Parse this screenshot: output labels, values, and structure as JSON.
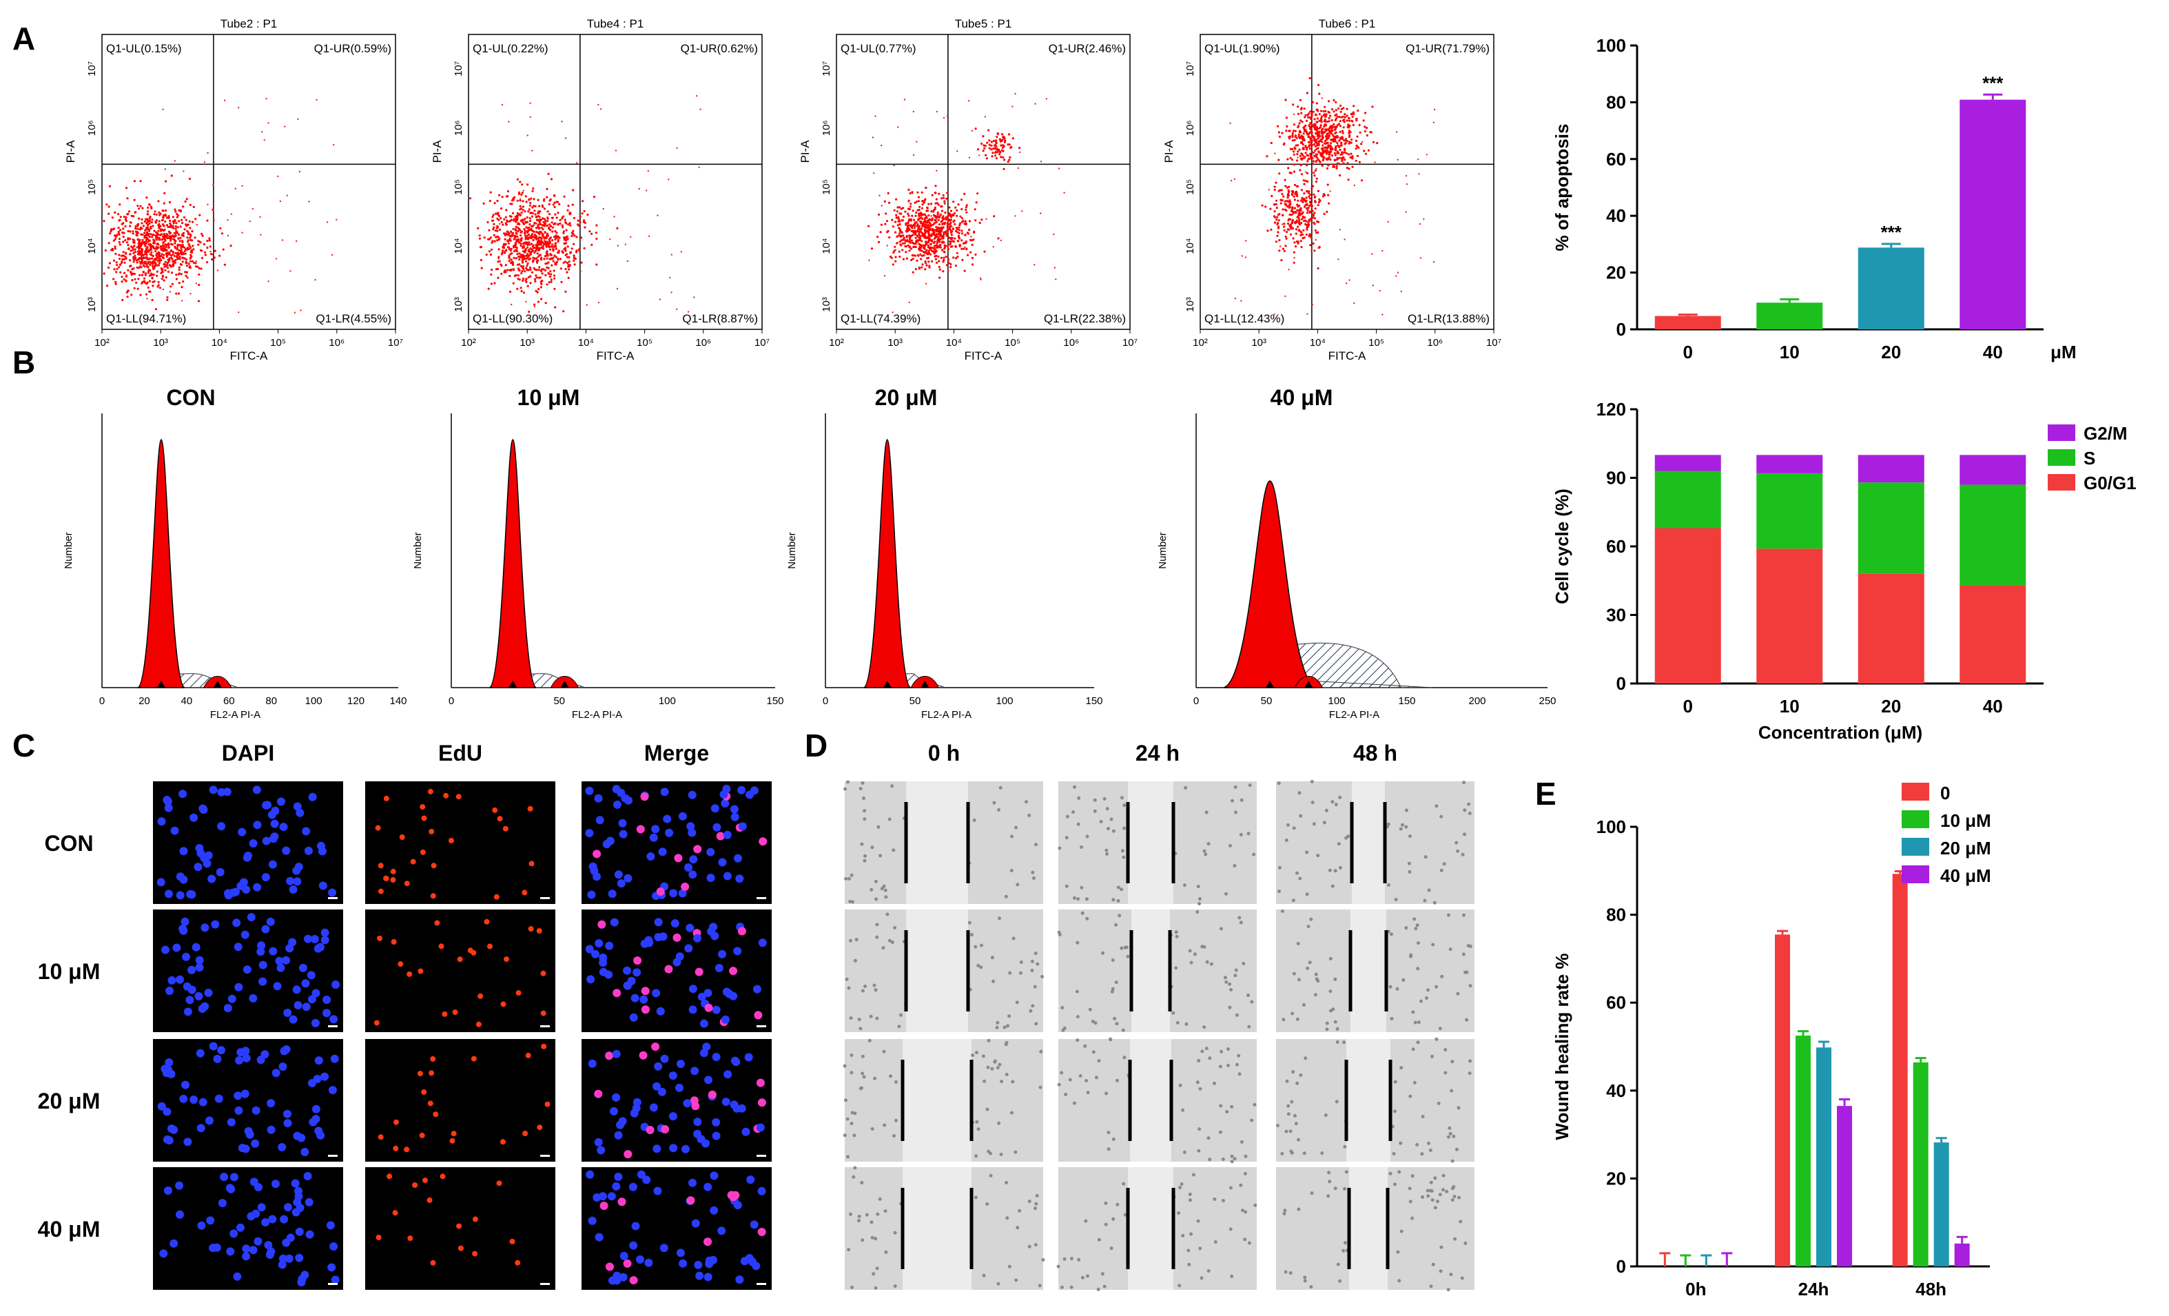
{
  "panels": {
    "a": "A",
    "b": "B",
    "c": "C",
    "d": "D",
    "e": "E"
  },
  "flow_cytometry": {
    "x_axis_label": "FITC-A",
    "y_axis_label": "PI-A",
    "x_ticks": [
      "10²",
      "10³",
      "10⁴",
      "10⁵",
      "10⁶",
      "10⁷"
    ],
    "y_ticks": [
      "10³",
      "10⁴",
      "10⁵",
      "10⁶",
      "10⁷"
    ],
    "plots": [
      {
        "title": "Tube2 : P1",
        "ul": "Q1-UL(0.15%)",
        "ur": "Q1-UR(0.59%)",
        "ll": "Q1-LL(94.71%)",
        "lr": "Q1-LR(4.55%)"
      },
      {
        "title": "Tube4 : P1",
        "ul": "Q1-UL(0.22%)",
        "ur": "Q1-UR(0.62%)",
        "ll": "Q1-LL(90.30%)",
        "lr": "Q1-LR(8.87%)"
      },
      {
        "title": "Tube5 : P1",
        "ul": "Q1-UL(0.77%)",
        "ur": "Q1-UR(2.46%)",
        "ll": "Q1-LL(74.39%)",
        "lr": "Q1-LR(22.38%)"
      },
      {
        "title": "Tube6 : P1",
        "ul": "Q1-UL(1.90%)",
        "ur": "Q1-UR(71.79%)",
        "ll": "Q1-LL(12.43%)",
        "lr": "Q1-LR(13.88%)"
      }
    ]
  },
  "histograms": {
    "y_axis_label": "Number",
    "x_axis_label": "FL2-A PI-A",
    "titles": [
      "CON",
      "10 μM",
      "20 μM",
      "40 μM"
    ],
    "x_ticks": [
      [
        "0",
        "20",
        "40",
        "60",
        "80",
        "100",
        "120",
        "140"
      ],
      [
        "0",
        "50",
        "100",
        "150"
      ],
      [
        "0",
        "50",
        "100",
        "150"
      ],
      [
        "0",
        "50",
        "100",
        "150",
        "200",
        "250"
      ]
    ]
  },
  "imaging": {
    "edu_columns": [
      "DAPI",
      "EdU",
      "Merge"
    ],
    "edu_rows": [
      "CON",
      "10 μM",
      "20 μM",
      "40 μM"
    ],
    "wound_columns": [
      "0 h",
      "24 h",
      "48 h"
    ]
  },
  "colors": {
    "red": "#F23B3B",
    "green": "#1DBF1D",
    "teal": "#1F97B0",
    "purple": "#A81FE0",
    "s_green": "#1DBF1D",
    "g2m_purple": "#A81FE0"
  },
  "chart_data": [
    {
      "type": "bar",
      "id": "apoptosis",
      "categories": [
        "0",
        "10",
        "20",
        "40"
      ],
      "unit_label": "μM",
      "values": [
        4.7,
        9.4,
        28.8,
        80.9
      ],
      "errors": [
        0.5,
        1.2,
        1.3,
        1.8
      ],
      "significance": [
        "",
        "",
        "***",
        "***"
      ],
      "ylabel": "% of apoptosis",
      "ylim": [
        0,
        100
      ],
      "yticks": [
        0,
        20,
        40,
        60,
        80,
        100
      ]
    },
    {
      "type": "bar",
      "id": "cell_cycle",
      "stacked": true,
      "categories": [
        "0",
        "10",
        "20",
        "40"
      ],
      "xlabel": "Concentration (μM)",
      "ylabel": "Cell cycle (%)",
      "ylim": [
        0,
        120
      ],
      "yticks": [
        0,
        30,
        60,
        90,
        120
      ],
      "legend_position": "top-right",
      "series": [
        {
          "name": "G0/G1",
          "values": [
            68,
            59,
            48,
            43
          ]
        },
        {
          "name": "S",
          "values": [
            25,
            33,
            40,
            44
          ]
        },
        {
          "name": "G2/M",
          "values": [
            7,
            8,
            12,
            13
          ]
        }
      ]
    },
    {
      "type": "bar",
      "id": "wound_healing",
      "categories": [
        "0h",
        "24h",
        "48h"
      ],
      "ylabel": "Wound healing rate %",
      "ylim": [
        0,
        100
      ],
      "yticks": [
        0,
        20,
        40,
        60,
        80,
        100
      ],
      "legend_position": "top-right",
      "series": [
        {
          "name": "0",
          "values": [
            0,
            75.5,
            89.3
          ],
          "errors": [
            3,
            0.8,
            0.6
          ]
        },
        {
          "name": "10 μM",
          "values": [
            0,
            52.5,
            46.4
          ],
          "errors": [
            2.5,
            1.0,
            1.0
          ]
        },
        {
          "name": "20 μM",
          "values": [
            0,
            49.8,
            28.2
          ],
          "errors": [
            2.5,
            1.3,
            1.0
          ]
        },
        {
          "name": "40 μM",
          "values": [
            0,
            36.5,
            5.2
          ],
          "errors": [
            3,
            1.5,
            1.5
          ]
        }
      ]
    }
  ]
}
